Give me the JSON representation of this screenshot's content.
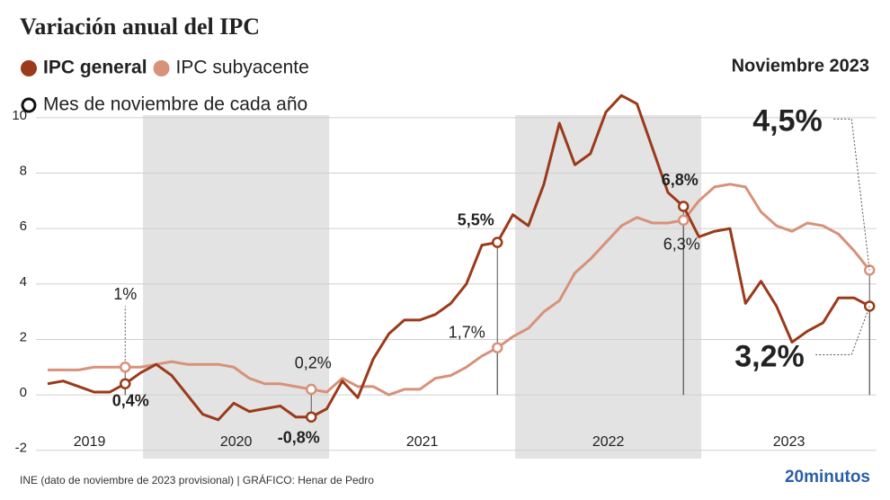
{
  "chart_data": {
    "type": "line",
    "title": "Variación anual del IPC",
    "categories": [
      null,
      null,
      null,
      null,
      null,
      null,
      null,
      null,
      null,
      null,
      null,
      null,
      null,
      null,
      null,
      null,
      null,
      null,
      null,
      null,
      null,
      null,
      null,
      null,
      null,
      null,
      null,
      null,
      null,
      null,
      null,
      null,
      null,
      null,
      null,
      null,
      null,
      null,
      null,
      null,
      null,
      null,
      null,
      null,
      null,
      null,
      null,
      null,
      null,
      null,
      null,
      null,
      null,
      null
    ],
    "year_labels": [
      "2019",
      "2020",
      "2021",
      "2022",
      "2023"
    ],
    "series": [
      {
        "name": "IPC general",
        "color": "#9b3a1a",
        "values": [
          0.4,
          0.5,
          0.3,
          0.1,
          0.1,
          0.4,
          0.8,
          1.1,
          0.7,
          0.0,
          -0.7,
          -0.9,
          -0.3,
          -0.6,
          -0.5,
          -0.4,
          -0.8,
          -0.8,
          -0.5,
          0.5,
          -0.1,
          1.3,
          2.2,
          2.7,
          2.7,
          2.9,
          3.3,
          4.0,
          5.4,
          5.5,
          6.5,
          6.1,
          7.6,
          9.8,
          8.3,
          8.7,
          10.2,
          10.8,
          10.5,
          8.9,
          7.3,
          6.8,
          5.7,
          5.9,
          6.0,
          3.3,
          4.1,
          3.2,
          1.9,
          2.3,
          2.6,
          3.5,
          3.5,
          3.2
        ],
        "value_labels": [
          null,
          null,
          null,
          null,
          null,
          "0,4%",
          null,
          null,
          null,
          null,
          null,
          null,
          null,
          null,
          null,
          null,
          null,
          "-0,8%",
          null,
          null,
          null,
          null,
          null,
          null,
          null,
          null,
          null,
          null,
          null,
          "5,5%",
          null,
          null,
          null,
          null,
          null,
          null,
          null,
          null,
          null,
          null,
          null,
          "6,8%",
          null,
          null,
          null,
          null,
          null,
          null,
          null,
          null,
          null,
          null,
          null,
          "3,2%"
        ]
      },
      {
        "name": "IPC subyacente",
        "color": "#d8917a",
        "values": [
          0.9,
          0.9,
          0.9,
          1.0,
          1.0,
          1.0,
          1.0,
          1.1,
          1.2,
          1.1,
          1.1,
          1.1,
          1.0,
          0.6,
          0.4,
          0.4,
          0.3,
          0.2,
          0.1,
          0.6,
          0.3,
          0.3,
          0.0,
          0.2,
          0.2,
          0.6,
          0.7,
          1.0,
          1.4,
          1.7,
          2.1,
          2.4,
          3.0,
          3.4,
          4.4,
          4.9,
          5.5,
          6.1,
          6.4,
          6.2,
          6.2,
          6.3,
          7.0,
          7.5,
          7.6,
          7.5,
          6.6,
          6.1,
          5.9,
          6.2,
          6.1,
          5.8,
          5.2,
          4.5
        ],
        "value_labels": [
          null,
          null,
          null,
          null,
          null,
          "1%",
          null,
          null,
          null,
          null,
          null,
          null,
          null,
          null,
          null,
          null,
          null,
          "0,2%",
          null,
          null,
          null,
          null,
          null,
          null,
          null,
          null,
          null,
          null,
          null,
          "1,7%",
          null,
          null,
          null,
          null,
          null,
          null,
          null,
          null,
          null,
          null,
          null,
          "6,3%",
          null,
          null,
          null,
          null,
          null,
          null,
          null,
          null,
          null,
          null,
          null,
          "4,5%"
        ]
      }
    ],
    "marker_legend": "Mes de noviembre de cada año",
    "annotation": "Noviembre 2023",
    "ylim": [
      -2.3,
      11
    ],
    "yticks": [
      -2,
      0,
      2,
      4,
      6,
      8,
      10
    ],
    "grid": true,
    "source": "INE (dato de noviembre de 2023 provisional)  |  GRÁFICO: Henar de Pedro",
    "logo": "20minutos"
  }
}
